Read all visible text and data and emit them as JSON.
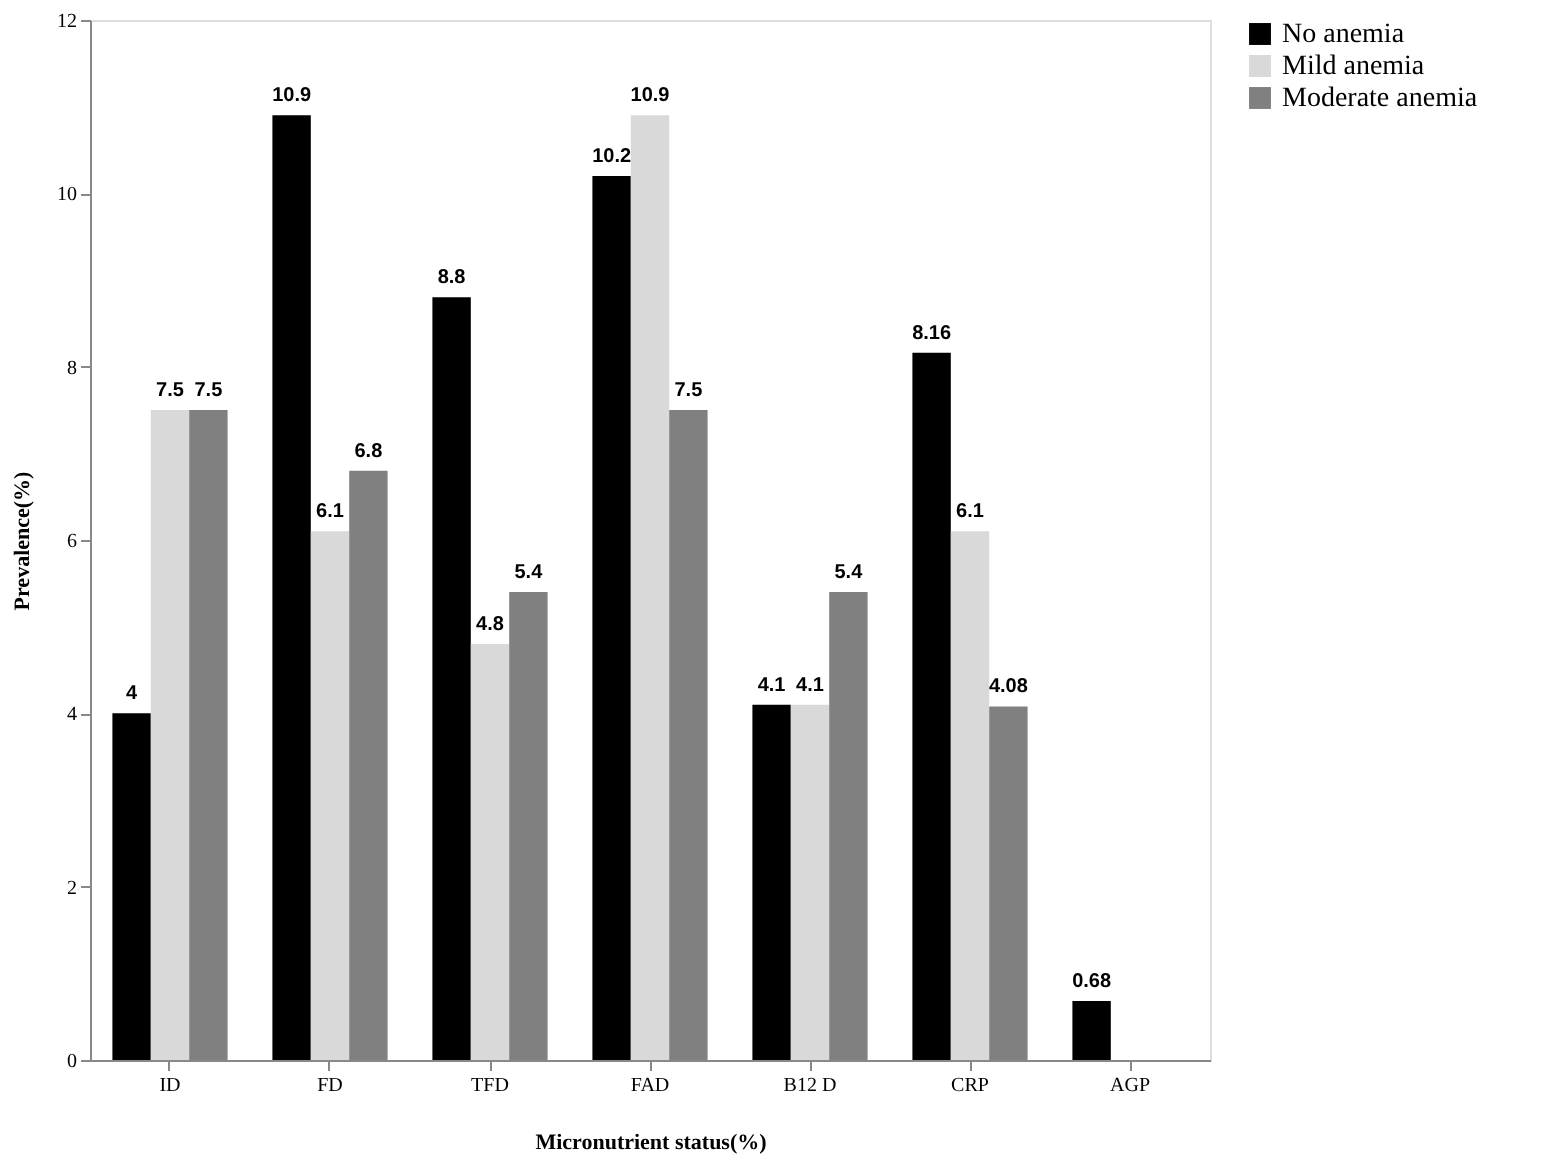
{
  "chart_data": {
    "type": "bar",
    "xlabel": "Micronutrient status(%)",
    "ylabel": "Prevalence(%)",
    "categories": [
      "ID",
      "FD",
      "TFD",
      "FAD",
      "B12 D",
      "CRP",
      "AGP"
    ],
    "series": [
      {
        "name": "No anemia",
        "color": "#000000",
        "values": [
          4,
          10.9,
          8.8,
          10.2,
          4.1,
          8.16,
          0.68
        ]
      },
      {
        "name": "Mild anemia",
        "color": "#d9d9d9",
        "values": [
          7.5,
          6.1,
          4.8,
          10.9,
          4.1,
          6.1,
          null
        ]
      },
      {
        "name": "Moderate anemia",
        "color": "#808080",
        "values": [
          7.5,
          6.8,
          5.4,
          7.5,
          5.4,
          4.08,
          null
        ]
      }
    ],
    "ylim": [
      0,
      12
    ],
    "yticks": [
      0,
      2,
      4,
      6,
      8,
      10,
      12
    ],
    "grid": false,
    "legend": "right",
    "data_labels": true
  }
}
